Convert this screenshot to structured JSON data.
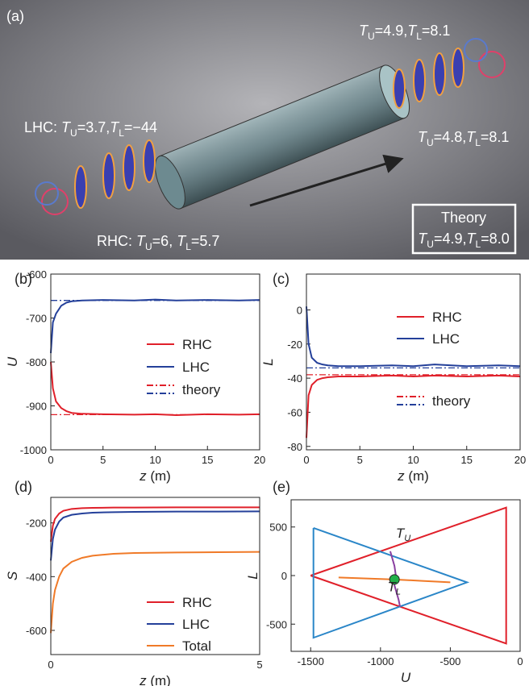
{
  "illustration": {
    "panel_label": "(a)",
    "annotations": [
      [
        "T",
        "U",
        "=4.9,",
        "T",
        "L",
        "=8.1"
      ],
      [
        "LHC: ",
        "T",
        "U",
        "=3.7,",
        "T",
        "L",
        "=−44"
      ],
      [
        "T",
        "U",
        "=4.8,",
        "T",
        "L",
        "=8.1"
      ],
      [
        "RHC: ",
        "T",
        "U",
        "=6, ",
        "T",
        "L",
        "=5.7"
      ]
    ],
    "theory_box": {
      "title": "Theory",
      "parts": [
        "T",
        "U",
        "=4.9,",
        "T",
        "L",
        "=8.0"
      ]
    }
  },
  "chart_data": [
    {
      "type": "line",
      "panel_label": "(b)",
      "xlabel": [
        "z",
        " (m)"
      ],
      "ylabel": "U",
      "xlim": [
        0,
        20
      ],
      "ylim": [
        -1000,
        -600
      ],
      "xticks": [
        0,
        5,
        10,
        15,
        20
      ],
      "yticks": [
        -1000,
        -900,
        -800,
        -700,
        -600
      ],
      "x": [
        0,
        0.2,
        0.5,
        1,
        1.5,
        2,
        3,
        5,
        8,
        10,
        12,
        15,
        18,
        20
      ],
      "series": [
        {
          "name": "RHC",
          "color": "#e0202a",
          "values": [
            -800,
            -860,
            -890,
            -905,
            -912,
            -916,
            -918,
            -919,
            -920,
            -919,
            -921,
            -919,
            -920,
            -919
          ]
        },
        {
          "name": "LHC",
          "color": "#24409a",
          "values": [
            -780,
            -710,
            -690,
            -672,
            -665,
            -662,
            -660,
            -659,
            -660,
            -658,
            -660,
            -659,
            -660,
            -659
          ]
        },
        {
          "name": "theory",
          "colors": [
            "#e0202a",
            "#24409a"
          ],
          "levels": [
            -920,
            -660
          ]
        }
      ]
    },
    {
      "type": "line",
      "panel_label": "(c)",
      "xlabel": [
        "z",
        " (m)"
      ],
      "ylabel": "L",
      "xlim": [
        0,
        20
      ],
      "ylim": [
        -82,
        21
      ],
      "xticks": [
        0,
        5,
        10,
        15,
        20
      ],
      "yticks": [
        -80,
        -60,
        -40,
        -20,
        0
      ],
      "x": [
        0,
        0.2,
        0.5,
        1,
        1.5,
        2,
        3,
        5,
        8,
        10,
        12,
        15,
        18,
        20
      ],
      "series": [
        {
          "name": "RHC",
          "color": "#e0202a",
          "values": [
            -75,
            -50,
            -44,
            -41,
            -40,
            -39.5,
            -39,
            -39,
            -38.5,
            -39,
            -38.5,
            -39,
            -38.5,
            -39
          ]
        },
        {
          "name": "LHC",
          "color": "#24409a",
          "values": [
            2,
            -20,
            -28,
            -31,
            -32,
            -32.5,
            -33,
            -33,
            -32.5,
            -33,
            -32,
            -33,
            -32.5,
            -33
          ]
        },
        {
          "name": "theory",
          "colors": [
            "#e0202a",
            "#24409a"
          ],
          "levels": [
            -38,
            -34
          ]
        }
      ]
    },
    {
      "type": "line",
      "panel_label": "(d)",
      "xlabel": [
        "z",
        " (m)"
      ],
      "ylabel": "S",
      "xlim": [
        0,
        5
      ],
      "ylim": [
        -690,
        -105
      ],
      "xticks": [
        0,
        5
      ],
      "yticks": [
        -600,
        -400,
        -200
      ],
      "x": [
        0,
        0.05,
        0.1,
        0.2,
        0.3,
        0.5,
        0.75,
        1,
        1.5,
        2,
        3,
        4,
        5
      ],
      "series": [
        {
          "name": "RHC",
          "color": "#e0202a",
          "values": [
            -270,
            -210,
            -185,
            -165,
            -155,
            -148,
            -145,
            -144,
            -143,
            -143,
            -142,
            -142,
            -142
          ]
        },
        {
          "name": "LHC",
          "color": "#24409a",
          "values": [
            -340,
            -260,
            -225,
            -195,
            -180,
            -170,
            -165,
            -162,
            -160,
            -159,
            -158,
            -158,
            -157
          ]
        },
        {
          "name": "Total",
          "color": "#f07a28",
          "values": [
            -610,
            -500,
            -450,
            -400,
            -370,
            -345,
            -330,
            -322,
            -315,
            -312,
            -310,
            -309,
            -308
          ]
        }
      ]
    },
    {
      "type": "line",
      "panel_label": "(e)",
      "xlabel": [
        "U"
      ],
      "ylabel": "L",
      "xlim": [
        -1640,
        0
      ],
      "ylim": [
        -780,
        780
      ],
      "xticks": [
        -1500,
        -1000,
        -500,
        0
      ],
      "yticks": [
        -500,
        0,
        500
      ],
      "series": [
        {
          "color": "#e0202a",
          "x": [
            -1500,
            -100,
            -100,
            -1500
          ],
          "values": [
            0,
            700,
            -700,
            0
          ]
        },
        {
          "color": "#2a86c8",
          "x": [
            -1480,
            -380,
            -1480,
            -1480
          ],
          "values": [
            490,
            -70,
            -640,
            490
          ]
        },
        {
          "color": "#8a3fa0",
          "x": [
            -930,
            -900,
            -890,
            -900,
            -870,
            -860
          ],
          "values": [
            250,
            100,
            0,
            -100,
            -250,
            -320
          ]
        },
        {
          "color": "#f07a28",
          "x": [
            -1300,
            -1100,
            -900,
            -700,
            -500
          ],
          "values": [
            -20,
            -30,
            -40,
            -55,
            -70
          ]
        },
        {
          "color": "#22b04a",
          "marker": true,
          "x": [
            -900
          ],
          "values": [
            -40
          ]
        }
      ],
      "annotations": [
        {
          "parts": [
            "T",
            "U"
          ],
          "color": "#8a3fa0"
        },
        {
          "parts": [
            "T",
            "L"
          ],
          "color": "#f07a28"
        }
      ]
    }
  ]
}
